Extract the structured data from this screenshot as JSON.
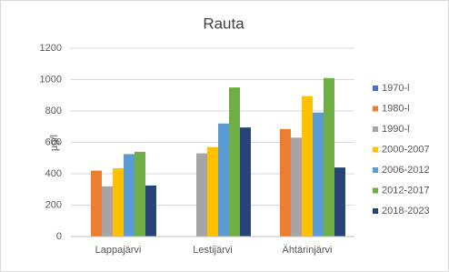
{
  "chart_data": {
    "type": "bar",
    "title": "Rauta",
    "y_label": "µg/l",
    "categories": [
      "Lappajärvi",
      "Lestijärvi",
      "Ähtärinjärvi"
    ],
    "series": [
      {
        "name": "1970-l",
        "color": "#4472c4",
        "values": [
          null,
          null,
          null
        ]
      },
      {
        "name": "1980-l",
        "color": "#ed7d31",
        "values": [
          420,
          null,
          685
        ]
      },
      {
        "name": "1990-l",
        "color": "#a5a5a5",
        "values": [
          320,
          530,
          630
        ]
      },
      {
        "name": "2000-2007",
        "color": "#ffc000",
        "values": [
          435,
          570,
          895
        ]
      },
      {
        "name": "2006-2012",
        "color": "#5b9bd5",
        "values": [
          525,
          720,
          790
        ]
      },
      {
        "name": "2012-2017",
        "color": "#70ad47",
        "values": [
          540,
          950,
          1010
        ]
      },
      {
        "name": "2018-2023",
        "color": "#264478",
        "values": [
          325,
          695,
          440
        ]
      }
    ],
    "ylim": [
      0,
      1200
    ],
    "yticks": [
      0,
      200,
      400,
      600,
      800,
      1000,
      1200
    ],
    "grid": true,
    "legend": "right"
  }
}
